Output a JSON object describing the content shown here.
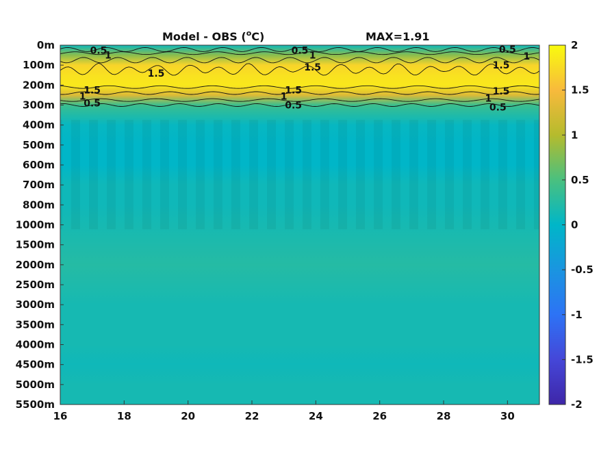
{
  "chart_data": {
    "type": "heatmap",
    "title": "Model - OBS (",
    "title_unit_sup": "o",
    "title_unit_tail": "C)",
    "max_label": "MAX=1.91",
    "x": [
      16,
      17,
      18,
      19,
      20,
      21,
      22,
      23,
      24,
      25,
      26,
      27,
      28,
      29,
      30,
      31
    ],
    "xlim": [
      16,
      31
    ],
    "x_ticks": [
      "16",
      "18",
      "20",
      "22",
      "24",
      "26",
      "28",
      "30"
    ],
    "x_tick_values": [
      16,
      18,
      20,
      22,
      24,
      26,
      28,
      30
    ],
    "y_ticks": [
      "0m",
      "100m",
      "200m",
      "300m",
      "400m",
      "500m",
      "600m",
      "700m",
      "800m",
      "1000m",
      "1500m",
      "2000m",
      "2500m",
      "3000m",
      "3500m",
      "4000m",
      "4500m",
      "5000m",
      "5500m"
    ],
    "colorbar": {
      "range": [
        -2,
        2
      ],
      "ticks": [
        "2",
        "1.5",
        "1",
        "0.5",
        "0",
        "-0.5",
        "-1",
        "-1.5",
        "-2"
      ],
      "tick_values": [
        2,
        1.5,
        1,
        0.5,
        0,
        -0.5,
        -1,
        -1.5,
        -2
      ]
    },
    "layers": [
      {
        "depth": "0m",
        "value": 0.1
      },
      {
        "depth": "50m",
        "value": 0.8
      },
      {
        "depth": "100m",
        "value": 1.7
      },
      {
        "depth": "150m",
        "value": 1.8
      },
      {
        "depth": "200m",
        "value": 1.85
      },
      {
        "depth": "250m",
        "value": 1.3
      },
      {
        "depth": "300m",
        "value": 0.4
      },
      {
        "depth": "400m",
        "value": 0.05
      },
      {
        "depth": "500m",
        "value": 0.0
      },
      {
        "depth": "600m",
        "value": 0.0
      },
      {
        "depth": "700m",
        "value": 0.1
      },
      {
        "depth": "800m",
        "value": 0.1
      },
      {
        "depth": "1000m",
        "value": 0.15
      },
      {
        "depth": "1500m",
        "value": 0.2
      },
      {
        "depth": "2000m",
        "value": 0.25
      },
      {
        "depth": "2500m",
        "value": 0.2
      },
      {
        "depth": "3000m",
        "value": 0.15
      },
      {
        "depth": "3500m",
        "value": 0.15
      },
      {
        "depth": "4000m",
        "value": 0.15
      },
      {
        "depth": "4500m",
        "value": 0.1
      },
      {
        "depth": "5000m",
        "value": 0.15
      },
      {
        "depth": "5500m",
        "value": 0.15
      }
    ],
    "contour_labels": [
      {
        "text": "0.5",
        "x": 17.2,
        "depth_m": 25
      },
      {
        "text": "1",
        "x": 17.5,
        "depth_m": 50
      },
      {
        "text": "1.5",
        "x": 19.0,
        "depth_m": 140
      },
      {
        "text": "1.5",
        "x": 17.0,
        "depth_m": 225
      },
      {
        "text": "1",
        "x": 16.7,
        "depth_m": 255
      },
      {
        "text": "0.5",
        "x": 17.0,
        "depth_m": 290
      },
      {
        "text": "0.5",
        "x": 23.5,
        "depth_m": 25
      },
      {
        "text": "1",
        "x": 23.9,
        "depth_m": 50
      },
      {
        "text": "1.5",
        "x": 23.9,
        "depth_m": 110
      },
      {
        "text": "1.5",
        "x": 23.3,
        "depth_m": 225
      },
      {
        "text": "1",
        "x": 23.0,
        "depth_m": 255
      },
      {
        "text": "0.5",
        "x": 23.3,
        "depth_m": 300
      },
      {
        "text": "0.5",
        "x": 30.0,
        "depth_m": 20
      },
      {
        "text": "1",
        "x": 30.6,
        "depth_m": 55
      },
      {
        "text": "1.5",
        "x": 29.8,
        "depth_m": 100
      },
      {
        "text": "1.5",
        "x": 29.8,
        "depth_m": 230
      },
      {
        "text": "1",
        "x": 29.4,
        "depth_m": 265
      },
      {
        "text": "0.5",
        "x": 29.7,
        "depth_m": 310
      }
    ]
  }
}
